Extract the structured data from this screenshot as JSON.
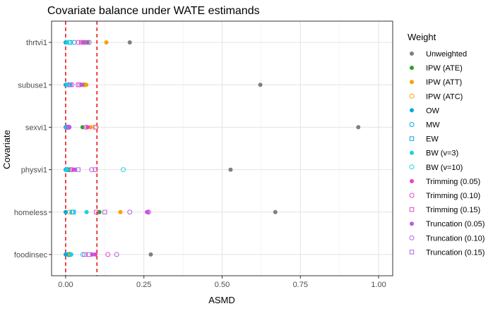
{
  "chart_data": {
    "type": "scatter",
    "title": "Covariate balance under WATE estimands",
    "xlabel": "ASMD",
    "ylabel": "Covariate",
    "xlim": [
      -0.045,
      1.045
    ],
    "x_ticks": [
      0.0,
      0.25,
      0.5,
      0.75,
      1.0
    ],
    "x_tick_labels": [
      "0.00",
      "0.25",
      "0.50",
      "0.75",
      "1.00"
    ],
    "categories": [
      "thrtvi1",
      "subuse1",
      "sexvi1",
      "physvi1",
      "homeless",
      "foodinsec"
    ],
    "reference_lines": [
      0.0,
      0.1
    ],
    "reference_line_color": "#e41a1c",
    "grid": true,
    "legend_title": "Weight",
    "legend_position": "right",
    "series": [
      {
        "name": "Unweighted",
        "color": "#7f7f7f",
        "shape": "circle-filled",
        "values": [
          0.205,
          0.622,
          0.935,
          0.527,
          0.67,
          0.272
        ]
      },
      {
        "name": "IPW (ATE)",
        "color": "#2ca02c",
        "shape": "circle-filled",
        "values": [
          0.068,
          0.063,
          0.054,
          0.009,
          0.108,
          0.009
        ]
      },
      {
        "name": "IPW (ATT)",
        "color": "#f5a300",
        "shape": "circle-filled",
        "values": [
          0.13,
          0.066,
          0.08,
          0.01,
          0.175,
          0.01
        ]
      },
      {
        "name": "IPW (ATC)",
        "color": "#f5a300",
        "shape": "circle-open",
        "values": [
          0.06,
          0.058,
          0.098,
          0.015,
          0.012,
          0.012
        ]
      },
      {
        "name": "OW",
        "color": "#00aadd",
        "shape": "circle-filled",
        "values": [
          0.0,
          0.0,
          0.0,
          0.0,
          0.0,
          0.0
        ]
      },
      {
        "name": "MW",
        "color": "#00aadd",
        "shape": "circle-open",
        "values": [
          0.028,
          0.01,
          0.003,
          0.005,
          0.02,
          0.01
        ]
      },
      {
        "name": "EW",
        "color": "#00aadd",
        "shape": "square-open",
        "values": [
          0.014,
          0.012,
          0.005,
          0.008,
          0.025,
          0.012
        ]
      },
      {
        "name": "BW (v=3)",
        "color": "#19d3e0",
        "shape": "circle-filled",
        "values": [
          0.005,
          0.005,
          0.003,
          0.003,
          0.067,
          0.018
        ]
      },
      {
        "name": "BW (v=10)",
        "color": "#19d3e0",
        "shape": "circle-open",
        "values": [
          0.01,
          0.008,
          0.005,
          0.184,
          0.022,
          0.055
        ]
      },
      {
        "name": "Trimming (0.05)",
        "color": "#e844c9",
        "shape": "circle-filled",
        "values": [
          0.055,
          0.052,
          0.07,
          0.025,
          0.26,
          0.095
        ]
      },
      {
        "name": "Trimming (0.10)",
        "color": "#e844c9",
        "shape": "circle-open",
        "values": [
          0.04,
          0.045,
          0.065,
          0.02,
          0.265,
          0.135
        ]
      },
      {
        "name": "Trimming (0.15)",
        "color": "#e844c9",
        "shape": "square-open",
        "values": [
          0.05,
          0.04,
          0.095,
          0.095,
          0.098,
          0.075
        ]
      },
      {
        "name": "Truncation (0.05)",
        "color": "#b35ee8",
        "shape": "circle-filled",
        "values": [
          0.06,
          0.05,
          0.012,
          0.03,
          0.262,
          0.085
        ]
      },
      {
        "name": "Truncation (0.10)",
        "color": "#b35ee8",
        "shape": "circle-open",
        "values": [
          0.075,
          0.02,
          0.01,
          0.083,
          0.205,
          0.163
        ]
      },
      {
        "name": "Truncation (0.15)",
        "color": "#b35ee8",
        "shape": "square-open",
        "values": [
          0.07,
          0.015,
          0.008,
          0.04,
          0.125,
          0.06
        ]
      }
    ]
  }
}
